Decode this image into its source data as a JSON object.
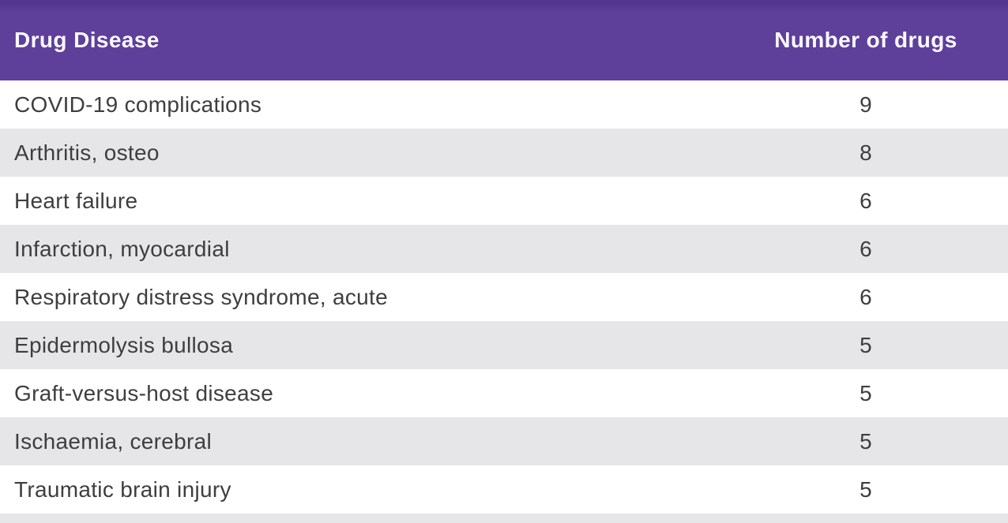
{
  "chart_data": {
    "type": "table",
    "title": "",
    "columns": [
      "Drug Disease",
      "Number of drugs"
    ],
    "rows": [
      [
        "COVID-19 complications",
        9
      ],
      [
        "Arthritis, osteo",
        8
      ],
      [
        "Heart failure",
        6
      ],
      [
        "Infarction, myocardial",
        6
      ],
      [
        "Respiratory distress syndrome, acute",
        6
      ],
      [
        "Epidermolysis bullosa",
        5
      ],
      [
        "Graft-versus-host disease",
        5
      ],
      [
        "Ischaemia, cerebral",
        5
      ],
      [
        "Traumatic brain injury",
        5
      ]
    ],
    "layout": {
      "header_position": "top",
      "row_striping": "alternating white and light gray, starting white",
      "value_column_alignment": "center",
      "partial_next_row_visible_at_bottom": true
    }
  },
  "colors": {
    "header_background": "#5e3f9a",
    "header_top_edge": "#54368e",
    "header_text": "#fbfafd",
    "row_background_odd": "#ffffff",
    "row_background_even": "#e6e6e8",
    "row_text": "#3e3e3e"
  }
}
